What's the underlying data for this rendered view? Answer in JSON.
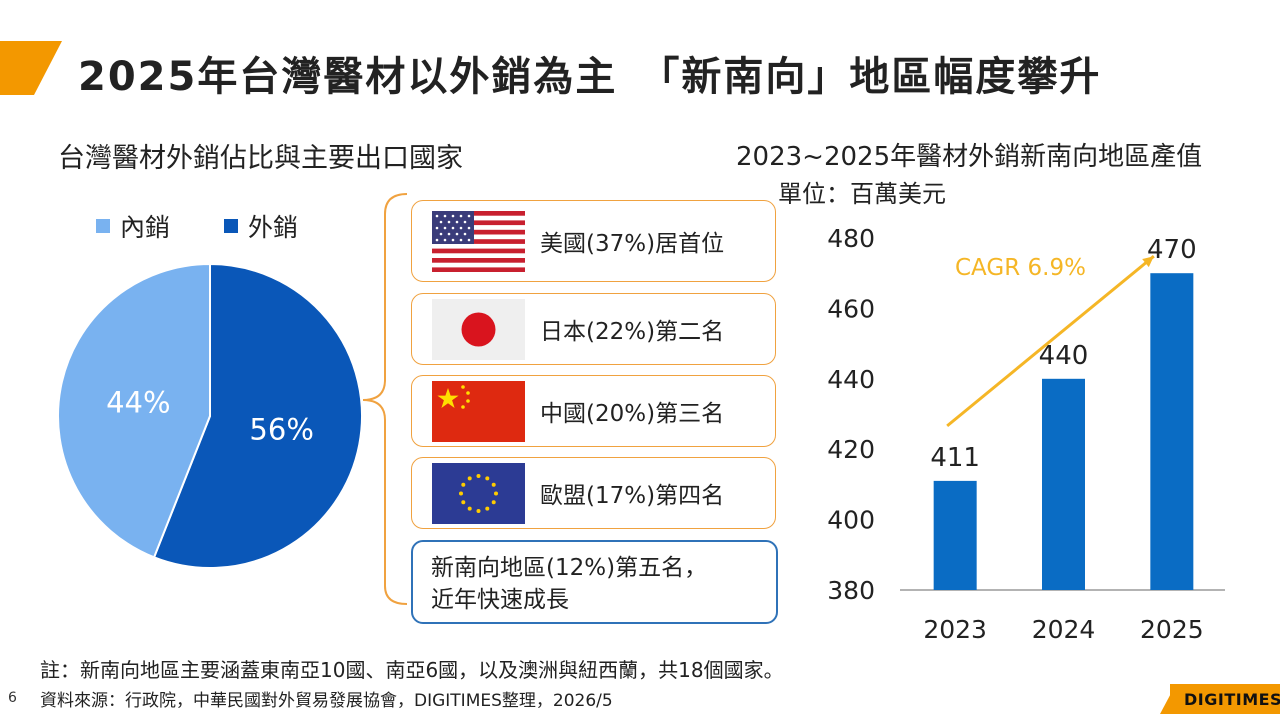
{
  "title": "2025年台灣醫材以外銷為主　「新南向」地區幅度攀升",
  "left_panel": {
    "title": "台灣醫材外銷佔比與主要出口國家",
    "legend": [
      {
        "label": "內銷",
        "color": "#79b2f0"
      },
      {
        "label": "外銷",
        "color": "#0a57b8"
      }
    ]
  },
  "destinations": [
    {
      "label": "美國(37%)居首位",
      "flag": "us-flag-icon"
    },
    {
      "label": "日本(22%)第二名",
      "flag": "japan-flag-icon"
    },
    {
      "label": "中國(20%)第三名",
      "flag": "china-flag-icon"
    },
    {
      "label": "歐盟(17%)第四名",
      "flag": "eu-flag-icon"
    }
  ],
  "highlight_destination": "新南向地區(12%)第五名，\n近年快速成長",
  "right_panel": {
    "title": "2023~2025年醫材外銷新南向地區產值",
    "unit": "單位：百萬美元",
    "cagr_label": "CAGR 6.9%"
  },
  "chart_data": [
    {
      "type": "pie",
      "labels": [
        "內銷",
        "外銷"
      ],
      "values": [
        44,
        56
      ],
      "data_labels": [
        "44%",
        "56%"
      ],
      "colors": [
        "#79b2f0",
        "#0a57b8"
      ],
      "legend_position": "top-left"
    },
    {
      "type": "bar",
      "title": "2023~2025年醫材外銷新南向地區產值",
      "ylabel": "單位：百萬美元",
      "categories": [
        "2023",
        "2024",
        "2025"
      ],
      "values": [
        411,
        440,
        470
      ],
      "ylim": [
        380,
        480
      ],
      "yticks": [
        380,
        400,
        420,
        440,
        460,
        480
      ],
      "annotation": "CAGR 6.9%",
      "bar_color": "#0a6cc4",
      "arrow_color": "#f5b626",
      "grid": false
    }
  ],
  "footer": {
    "note": "註：新南向地區主要涵蓋東南亞10國、南亞6國，以及澳洲與紐西蘭，共18個國家。",
    "page_number": "6",
    "source": "資料來源：行政院，中華民國對外貿易發展協會，DIGITIMES整理，2026/5",
    "logo": "DIGITIMES"
  }
}
